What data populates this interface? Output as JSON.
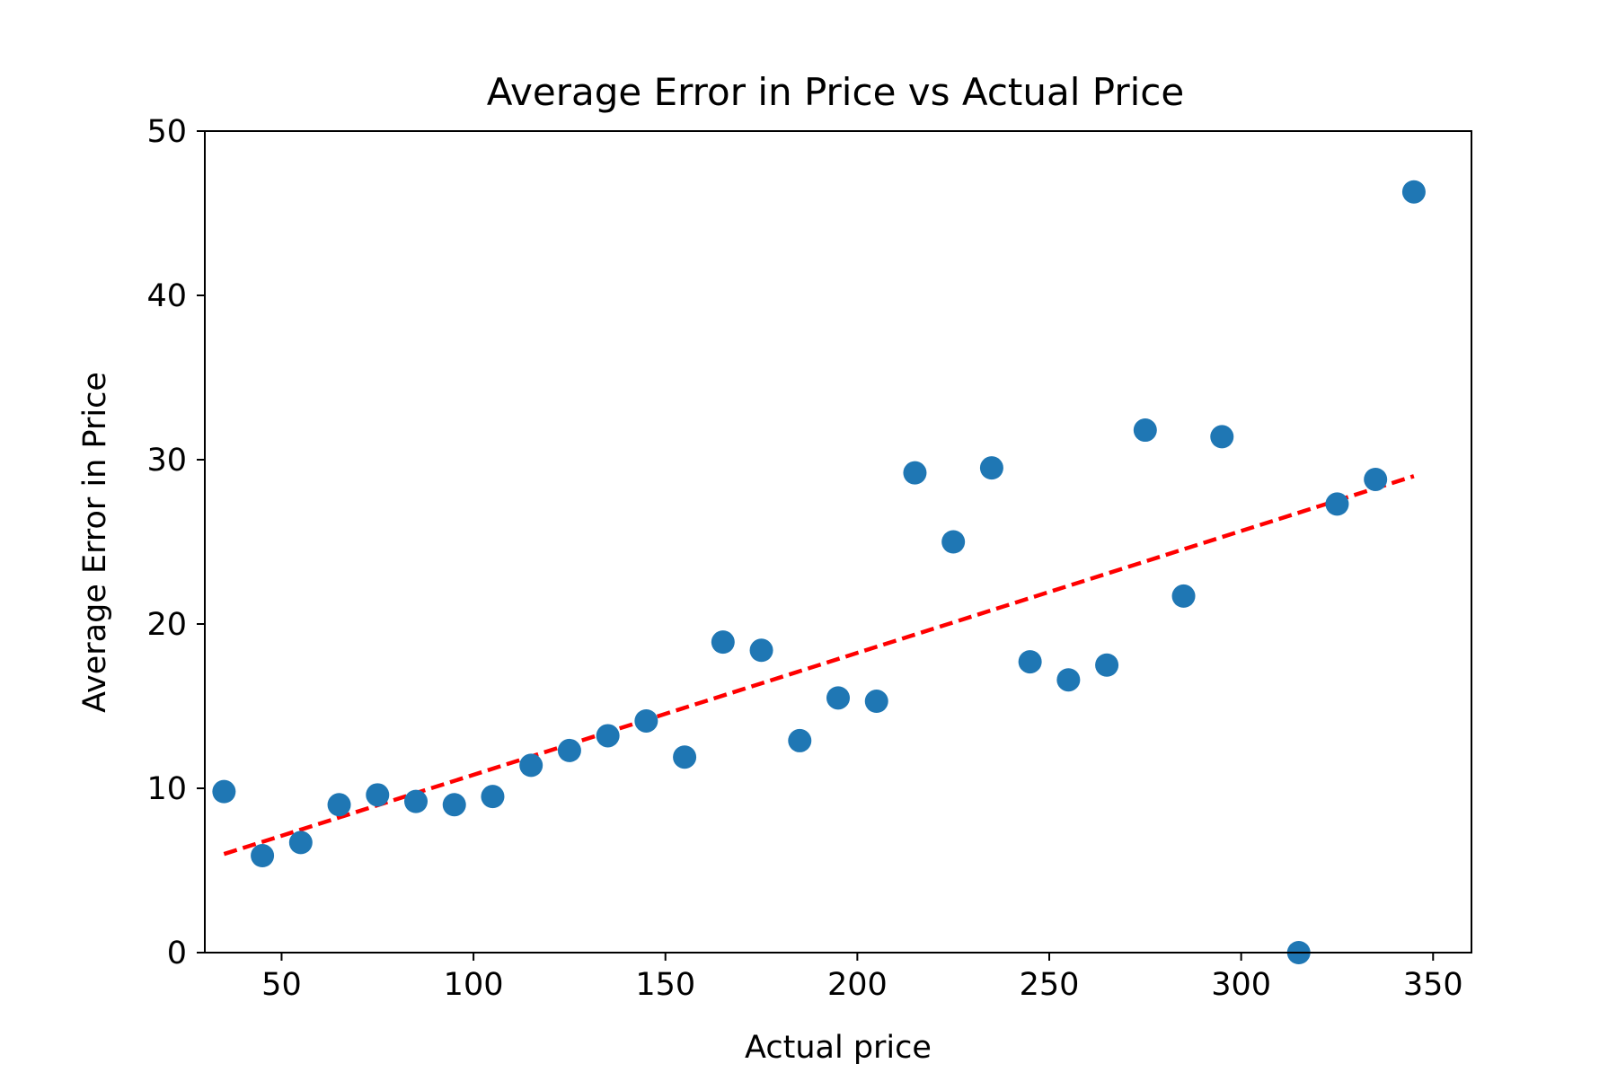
{
  "chart_data": {
    "type": "scatter",
    "title": "Average Error in Price vs Actual Price",
    "xlabel": "Actual price",
    "ylabel": "Average Error in Price",
    "xlim": [
      30,
      360
    ],
    "ylim": [
      0,
      50
    ],
    "xticks": [
      50,
      100,
      150,
      200,
      250,
      300,
      350
    ],
    "yticks": [
      0,
      10,
      20,
      30,
      40,
      50
    ],
    "grid": false,
    "points": {
      "color": "#1f77b4",
      "x": [
        35,
        45,
        55,
        65,
        75,
        85,
        95,
        105,
        115,
        125,
        135,
        145,
        155,
        165,
        175,
        185,
        195,
        205,
        215,
        225,
        235,
        245,
        255,
        265,
        275,
        285,
        295,
        315,
        325,
        335,
        345
      ],
      "y": [
        9.8,
        5.9,
        6.7,
        9.0,
        9.6,
        9.2,
        9.0,
        9.5,
        11.4,
        12.3,
        13.2,
        14.1,
        11.9,
        18.9,
        18.4,
        12.9,
        15.5,
        15.3,
        29.2,
        25.0,
        29.5,
        17.7,
        16.6,
        17.5,
        31.8,
        21.7,
        31.4,
        0.0,
        27.3,
        28.8,
        46.3
      ]
    },
    "trendline": {
      "style": "dashed",
      "color": "#ff0000",
      "x": [
        35,
        345
      ],
      "y": [
        6.0,
        29.0
      ]
    }
  }
}
